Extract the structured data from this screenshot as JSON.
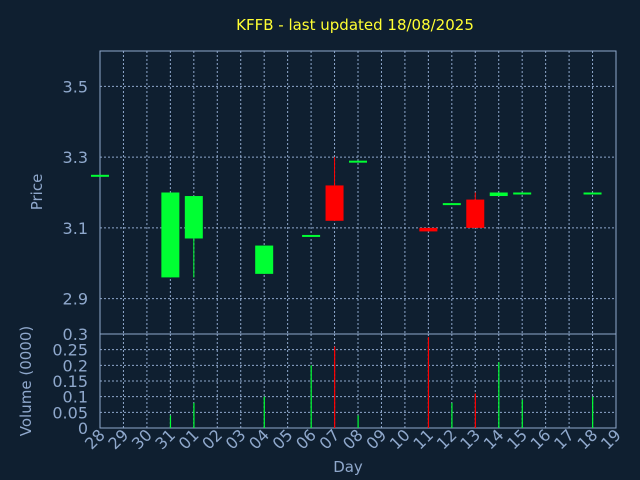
{
  "colors": {
    "background": "#0f1f30",
    "title": "#ffff33",
    "axis_text": "#8fa8cc",
    "frame": "#8fa8cc",
    "grid": "#8fa8cc",
    "up": "#00ff33",
    "down": "#ff0000"
  },
  "chart_data": [
    {
      "type": "candlestick",
      "title": "KFFB - last updated 18/08/2025",
      "ylabel": "Price",
      "ylim": [
        2.8,
        3.6
      ],
      "yticks": [
        "2.9",
        "3.1",
        "3.3",
        "3.5"
      ],
      "grid": true,
      "candles": [
        {
          "day": "28",
          "open": 3.25,
          "high": 3.25,
          "low": 3.25,
          "close": 3.25
        },
        {
          "day": "31",
          "open": 2.96,
          "high": 3.2,
          "low": 2.96,
          "close": 3.2
        },
        {
          "day": "01",
          "open": 3.07,
          "high": 3.19,
          "low": 2.96,
          "close": 3.19
        },
        {
          "day": "04",
          "open": 2.97,
          "high": 3.05,
          "low": 2.97,
          "close": 3.05
        },
        {
          "day": "06",
          "open": 3.08,
          "high": 3.08,
          "low": 3.08,
          "close": 3.08
        },
        {
          "day": "07",
          "open": 3.22,
          "high": 3.3,
          "low": 3.12,
          "close": 3.12
        },
        {
          "day": "08",
          "open": 3.29,
          "high": 3.29,
          "low": 3.29,
          "close": 3.29
        },
        {
          "day": "11",
          "open": 3.1,
          "high": 3.1,
          "low": 3.09,
          "close": 3.09
        },
        {
          "day": "12",
          "open": 3.17,
          "high": 3.17,
          "low": 3.17,
          "close": 3.17
        },
        {
          "day": "13",
          "open": 3.18,
          "high": 3.2,
          "low": 3.1,
          "close": 3.1
        },
        {
          "day": "14",
          "open": 3.19,
          "high": 3.2,
          "low": 3.19,
          "close": 3.2
        },
        {
          "day": "15",
          "open": 3.2,
          "high": 3.2,
          "low": 3.2,
          "close": 3.2
        },
        {
          "day": "18",
          "open": 3.2,
          "high": 3.2,
          "low": 3.2,
          "close": 3.2
        }
      ]
    },
    {
      "type": "bar",
      "ylabel": "Volume (0000)",
      "xlabel": "Day",
      "ylim": [
        0,
        0.3
      ],
      "yticks": [
        "0",
        "0.05",
        "0.1",
        "0.15",
        "0.2",
        "0.25",
        "0.3"
      ],
      "categories": [
        "28",
        "29",
        "30",
        "31",
        "01",
        "02",
        "03",
        "04",
        "05",
        "06",
        "07",
        "08",
        "09",
        "10",
        "11",
        "12",
        "13",
        "14",
        "15",
        "16",
        "17",
        "18",
        "19"
      ],
      "grid": true,
      "volumes": [
        {
          "day": "31",
          "value": 0.04,
          "direction": "up"
        },
        {
          "day": "01",
          "value": 0.08,
          "direction": "up"
        },
        {
          "day": "04",
          "value": 0.1,
          "direction": "up"
        },
        {
          "day": "06",
          "value": 0.2,
          "direction": "up"
        },
        {
          "day": "07",
          "value": 0.26,
          "direction": "down"
        },
        {
          "day": "08",
          "value": 0.04,
          "direction": "up"
        },
        {
          "day": "11",
          "value": 0.29,
          "direction": "down"
        },
        {
          "day": "12",
          "value": 0.08,
          "direction": "up"
        },
        {
          "day": "13",
          "value": 0.11,
          "direction": "down"
        },
        {
          "day": "14",
          "value": 0.21,
          "direction": "up"
        },
        {
          "day": "15",
          "value": 0.09,
          "direction": "up"
        },
        {
          "day": "18",
          "value": 0.1,
          "direction": "up"
        }
      ]
    }
  ]
}
